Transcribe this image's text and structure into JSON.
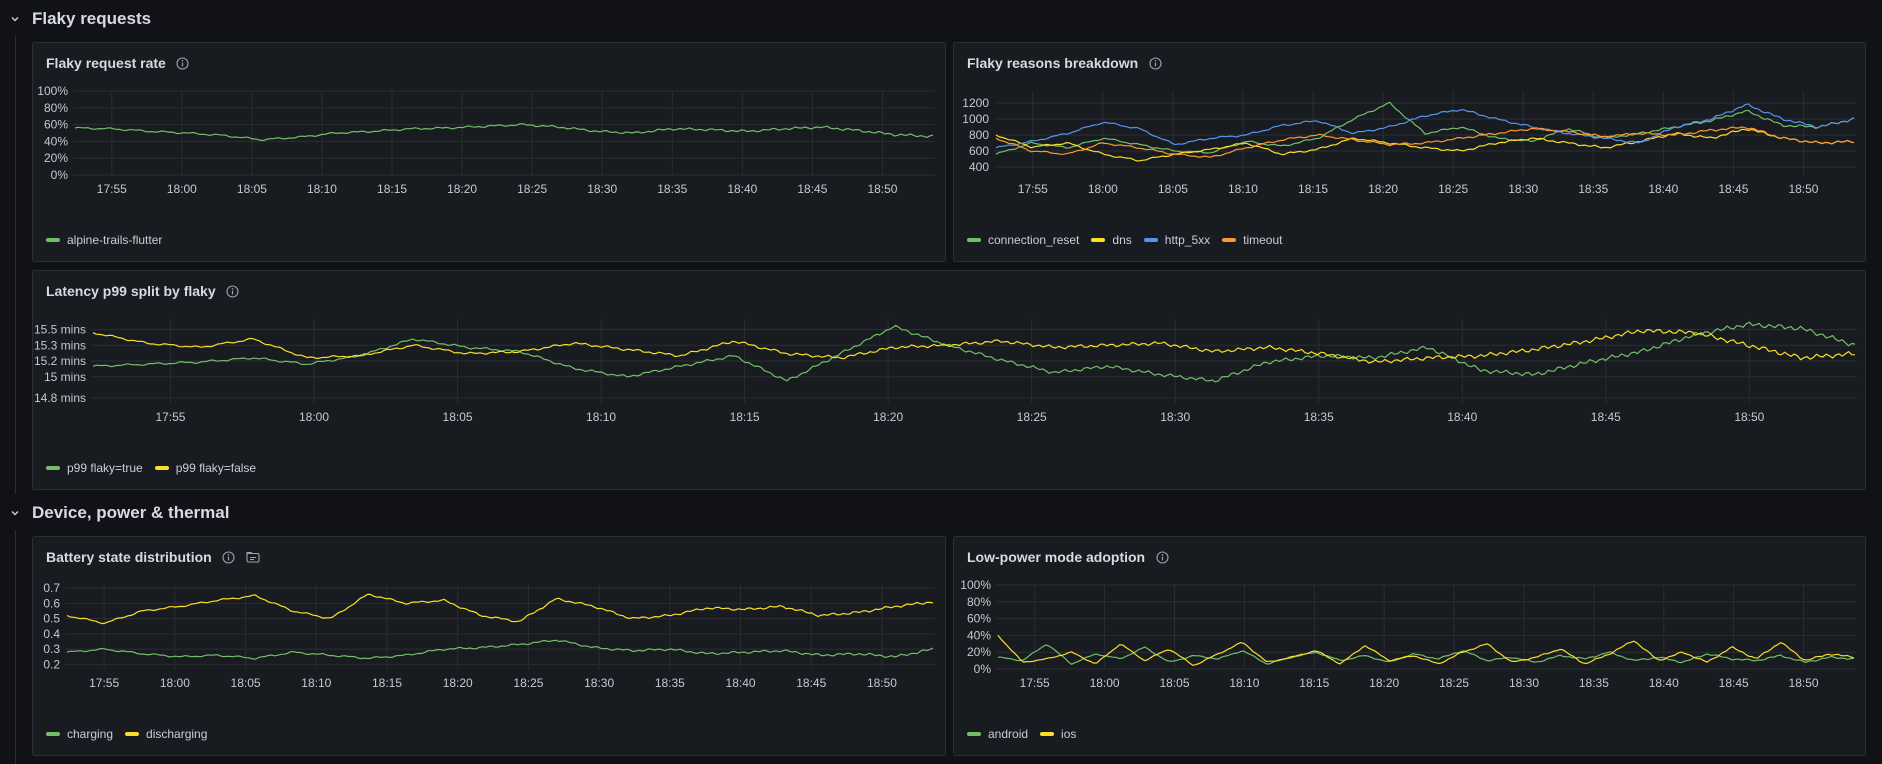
{
  "rows": [
    {
      "title": "Flaky requests",
      "icon": "chevron-down-icon"
    },
    {
      "title": "Device, power & thermal",
      "icon": "chevron-down-icon"
    }
  ],
  "panels": {
    "flaky_rate": {
      "title": "Flaky request rate",
      "info_icon": "info-icon",
      "legend": [
        {
          "name": "alpine-trails-flutter",
          "color": "#73bf69"
        }
      ]
    },
    "flaky_reasons": {
      "title": "Flaky reasons breakdown",
      "info_icon": "info-icon",
      "legend": [
        {
          "name": "connection_reset",
          "color": "#73bf69"
        },
        {
          "name": "dns",
          "color": "#fade2a"
        },
        {
          "name": "http_5xx",
          "color": "#5794f2"
        },
        {
          "name": "timeout",
          "color": "#ff9830"
        }
      ]
    },
    "latency": {
      "title": "Latency p99 split by flaky",
      "info_icon": "info-icon",
      "legend": [
        {
          "name": "p99 flaky=true",
          "color": "#73bf69"
        },
        {
          "name": "p99 flaky=false",
          "color": "#fade2a"
        }
      ]
    },
    "battery": {
      "title": "Battery state distribution",
      "info_icon": "info-icon",
      "extra_icon": "library-panel-icon",
      "legend": [
        {
          "name": "charging",
          "color": "#73bf69"
        },
        {
          "name": "discharging",
          "color": "#fade2a"
        }
      ]
    },
    "lowpower": {
      "title": "Low-power mode adoption",
      "info_icon": "info-icon",
      "legend": [
        {
          "name": "android",
          "color": "#73bf69"
        },
        {
          "name": "ios",
          "color": "#fade2a"
        }
      ]
    }
  },
  "chart_data": [
    {
      "id": "flaky_rate",
      "type": "line",
      "x_ticks": [
        "17:55",
        "18:00",
        "18:05",
        "18:10",
        "18:15",
        "18:20",
        "18:25",
        "18:30",
        "18:35",
        "18:40",
        "18:45",
        "18:50"
      ],
      "y_ticks": [
        "0%",
        "20%",
        "40%",
        "60%",
        "80%",
        "100%"
      ],
      "ylim": [
        0,
        1
      ],
      "grid": true,
      "legend_position": "bottom-left",
      "series": [
        {
          "name": "alpine-trails-flutter",
          "color": "#73bf69",
          "values": [
            0.56,
            0.55,
            0.52,
            0.5,
            0.47,
            0.42,
            0.45,
            0.5,
            0.52,
            0.55,
            0.56,
            0.58,
            0.6,
            0.57,
            0.52,
            0.5,
            0.55,
            0.54,
            0.52,
            0.55,
            0.57,
            0.53,
            0.48,
            0.46
          ]
        }
      ]
    },
    {
      "id": "flaky_reasons",
      "type": "line",
      "x_ticks": [
        "17:55",
        "18:00",
        "18:05",
        "18:10",
        "18:15",
        "18:20",
        "18:25",
        "18:30",
        "18:35",
        "18:40",
        "18:45",
        "18:50"
      ],
      "y_ticks": [
        "400",
        "600",
        "800",
        "1000",
        "1200"
      ],
      "ylim": [
        300,
        1350
      ],
      "grid": true,
      "legend_position": "bottom-left",
      "series": [
        {
          "name": "connection_reset",
          "color": "#73bf69",
          "values": [
            560,
            700,
            640,
            760,
            680,
            600,
            580,
            720,
            660,
            760,
            1000,
            1200,
            820,
            900,
            760,
            720,
            880,
            760,
            820,
            900,
            980,
            1100,
            920,
            900,
            1000
          ]
        },
        {
          "name": "dns",
          "color": "#fade2a",
          "values": [
            800,
            650,
            700,
            560,
            480,
            560,
            620,
            700,
            560,
            620,
            760,
            700,
            640,
            600,
            700,
            760,
            700,
            640,
            720,
            820,
            760,
            880,
            760,
            700,
            720
          ]
        },
        {
          "name": "http_5xx",
          "color": "#5794f2",
          "values": [
            640,
            720,
            820,
            960,
            880,
            680,
            760,
            800,
            920,
            980,
            820,
            900,
            1040,
            1120,
            1000,
            900,
            820,
            760,
            700,
            900,
            1000,
            1180,
            1000,
            900,
            1000
          ]
        },
        {
          "name": "timeout",
          "color": "#ff9830",
          "values": [
            760,
            600,
            560,
            700,
            640,
            560,
            520,
            640,
            740,
            800,
            740,
            680,
            700,
            760,
            820,
            880,
            840,
            780,
            820,
            800,
            860,
            900,
            760,
            700,
            720
          ]
        }
      ]
    },
    {
      "id": "latency",
      "type": "line",
      "x_ticks": [
        "17:55",
        "18:00",
        "18:05",
        "18:10",
        "18:15",
        "18:20",
        "18:25",
        "18:30",
        "18:35",
        "18:40",
        "18:45",
        "18:50"
      ],
      "y_ticks": [
        "14.8 mins",
        "15 mins",
        "15.2 mins",
        "15.3 mins",
        "15.5 mins"
      ],
      "ylim": [
        14.75,
        15.55
      ],
      "grid": true,
      "legend_position": "bottom-left",
      "series": [
        {
          "name": "p99 flaky=true",
          "color": "#73bf69",
          "values": [
            15.1,
            15.12,
            15.14,
            15.18,
            15.12,
            15.2,
            15.36,
            15.28,
            15.24,
            15.08,
            15.0,
            15.1,
            15.2,
            14.96,
            15.22,
            15.48,
            15.3,
            15.16,
            15.04,
            15.1,
            15.02,
            14.96,
            15.14,
            15.2,
            15.18,
            15.28,
            15.06,
            15.02,
            15.14,
            15.24,
            15.4,
            15.5,
            15.46,
            15.3
          ]
        },
        {
          "name": "p99 flaky=false",
          "color": "#fade2a",
          "values": [
            15.42,
            15.32,
            15.28,
            15.36,
            15.18,
            15.2,
            15.3,
            15.22,
            15.24,
            15.32,
            15.26,
            15.2,
            15.34,
            15.22,
            15.18,
            15.28,
            15.3,
            15.34,
            15.28,
            15.3,
            15.32,
            15.24,
            15.28,
            15.22,
            15.14,
            15.18,
            15.2,
            15.26,
            15.34,
            15.44,
            15.42,
            15.3,
            15.18,
            15.22
          ]
        }
      ]
    },
    {
      "id": "battery",
      "type": "line",
      "x_ticks": [
        "17:55",
        "18:00",
        "18:05",
        "18:10",
        "18:15",
        "18:20",
        "18:25",
        "18:30",
        "18:35",
        "18:40",
        "18:45",
        "18:50"
      ],
      "y_ticks": [
        "0.2",
        "0.3",
        "0.4",
        "0.5",
        "0.6",
        "0.7"
      ],
      "ylim": [
        0.17,
        0.72
      ],
      "grid": true,
      "legend_position": "bottom-left",
      "series": [
        {
          "name": "charging",
          "color": "#73bf69",
          "values": [
            0.28,
            0.3,
            0.27,
            0.25,
            0.26,
            0.24,
            0.28,
            0.26,
            0.24,
            0.26,
            0.3,
            0.31,
            0.33,
            0.36,
            0.31,
            0.29,
            0.3,
            0.27,
            0.28,
            0.29,
            0.26,
            0.27,
            0.25,
            0.3
          ]
        },
        {
          "name": "discharging",
          "color": "#fade2a",
          "values": [
            0.52,
            0.47,
            0.55,
            0.58,
            0.62,
            0.65,
            0.55,
            0.5,
            0.66,
            0.6,
            0.62,
            0.52,
            0.48,
            0.63,
            0.58,
            0.5,
            0.52,
            0.57,
            0.56,
            0.58,
            0.52,
            0.54,
            0.58,
            0.61
          ]
        }
      ]
    },
    {
      "id": "lowpower",
      "type": "line",
      "x_ticks": [
        "17:55",
        "18:00",
        "18:05",
        "18:10",
        "18:15",
        "18:20",
        "18:25",
        "18:30",
        "18:35",
        "18:40",
        "18:45",
        "18:50"
      ],
      "y_ticks": [
        "0%",
        "20%",
        "40%",
        "60%",
        "80%",
        "100%"
      ],
      "ylim": [
        0,
        1
      ],
      "grid": true,
      "legend_position": "bottom-left",
      "series": [
        {
          "name": "android",
          "color": "#73bf69",
          "values": [
            0.14,
            0.1,
            0.3,
            0.06,
            0.18,
            0.12,
            0.26,
            0.08,
            0.16,
            0.12,
            0.22,
            0.06,
            0.14,
            0.2,
            0.1,
            0.16,
            0.08,
            0.18,
            0.12,
            0.22,
            0.1,
            0.14,
            0.08,
            0.16,
            0.12,
            0.2,
            0.1,
            0.14,
            0.08,
            0.18,
            0.12,
            0.1,
            0.16,
            0.08,
            0.14,
            0.12
          ]
        },
        {
          "name": "ios",
          "color": "#fade2a",
          "values": [
            0.4,
            0.08,
            0.12,
            0.2,
            0.06,
            0.3,
            0.1,
            0.24,
            0.04,
            0.18,
            0.32,
            0.08,
            0.14,
            0.22,
            0.06,
            0.28,
            0.1,
            0.16,
            0.06,
            0.2,
            0.3,
            0.08,
            0.14,
            0.24,
            0.06,
            0.18,
            0.34,
            0.1,
            0.2,
            0.08,
            0.26,
            0.12,
            0.32,
            0.1,
            0.18,
            0.14
          ]
        }
      ]
    }
  ]
}
